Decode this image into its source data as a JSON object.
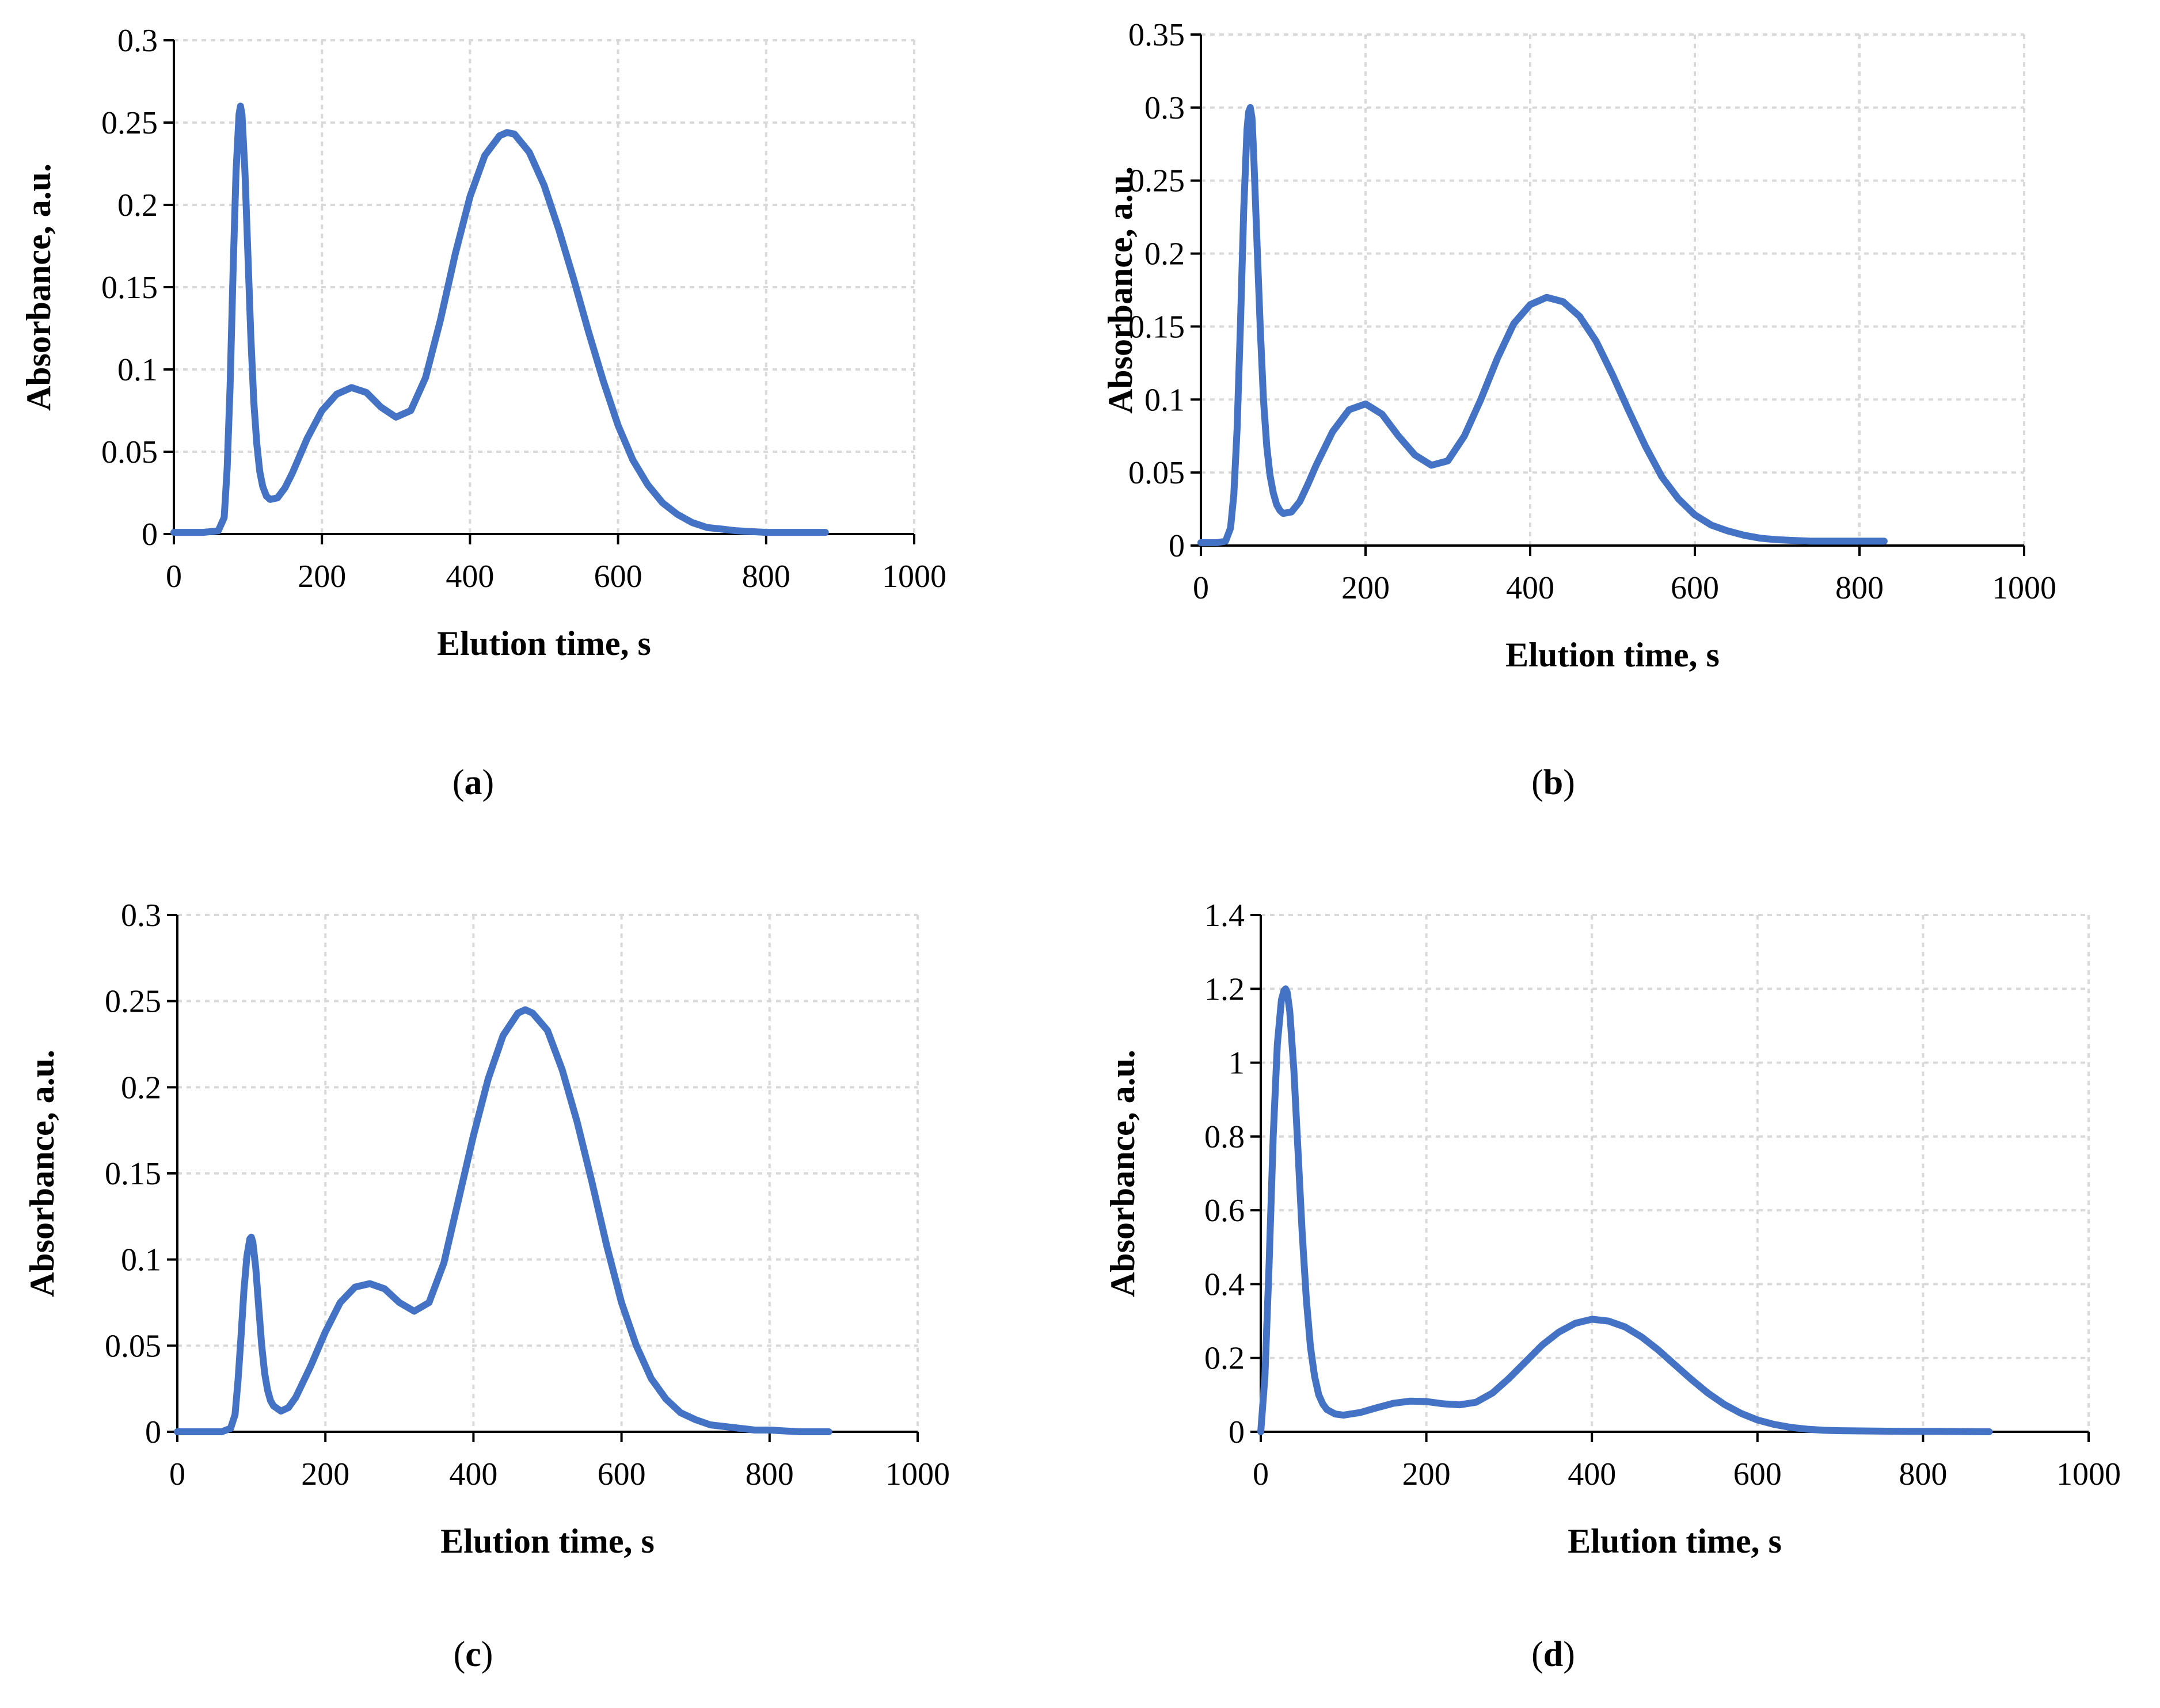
{
  "chart_data": [
    {
      "id": "a",
      "type": "line",
      "panel_label": "a",
      "xlabel": "Elution time, s",
      "ylabel": "Absorbance, a.u.",
      "xlim": [
        0,
        1000
      ],
      "ylim": [
        0,
        0.3
      ],
      "xticks": [
        0,
        200,
        400,
        600,
        800,
        1000
      ],
      "yticks": [
        0,
        0.05,
        0.1,
        0.15,
        0.2,
        0.25,
        0.3
      ],
      "grid": true,
      "x": [
        0,
        40,
        60,
        68,
        72,
        76,
        80,
        84,
        88,
        90,
        92,
        96,
        100,
        104,
        108,
        112,
        116,
        120,
        125,
        130,
        140,
        150,
        160,
        180,
        200,
        220,
        240,
        260,
        280,
        300,
        320,
        340,
        360,
        380,
        400,
        420,
        440,
        450,
        460,
        480,
        500,
        520,
        540,
        560,
        580,
        600,
        620,
        640,
        660,
        680,
        700,
        720,
        740,
        760,
        780,
        800,
        840,
        880
      ],
      "values": [
        0.001,
        0.001,
        0.002,
        0.01,
        0.04,
        0.09,
        0.16,
        0.22,
        0.255,
        0.26,
        0.255,
        0.22,
        0.17,
        0.12,
        0.08,
        0.055,
        0.038,
        0.029,
        0.023,
        0.021,
        0.022,
        0.028,
        0.037,
        0.058,
        0.075,
        0.085,
        0.089,
        0.086,
        0.077,
        0.071,
        0.075,
        0.095,
        0.13,
        0.17,
        0.205,
        0.23,
        0.242,
        0.244,
        0.243,
        0.232,
        0.212,
        0.185,
        0.155,
        0.123,
        0.093,
        0.066,
        0.045,
        0.03,
        0.019,
        0.012,
        0.007,
        0.004,
        0.003,
        0.002,
        0.0015,
        0.001,
        0.001,
        0.001
      ],
      "xmax_data": 880
    },
    {
      "id": "b",
      "type": "line",
      "panel_label": "b",
      "xlabel": "Elution time, s",
      "ylabel": "Absorbance, a.u.",
      "xlim": [
        0,
        1000
      ],
      "ylim": [
        0,
        0.35
      ],
      "xticks": [
        0,
        200,
        400,
        600,
        800,
        1000
      ],
      "yticks": [
        0,
        0.05,
        0.1,
        0.15,
        0.2,
        0.25,
        0.3,
        0.35
      ],
      "grid": true,
      "x": [
        0,
        20,
        30,
        36,
        40,
        44,
        48,
        52,
        56,
        58,
        60,
        62,
        64,
        68,
        72,
        76,
        80,
        84,
        88,
        92,
        96,
        100,
        110,
        120,
        130,
        140,
        160,
        180,
        200,
        220,
        240,
        260,
        280,
        300,
        320,
        340,
        360,
        380,
        400,
        420,
        440,
        460,
        480,
        500,
        520,
        540,
        560,
        580,
        600,
        620,
        640,
        660,
        680,
        700,
        740,
        780,
        830
      ],
      "values": [
        0.002,
        0.002,
        0.003,
        0.012,
        0.035,
        0.08,
        0.15,
        0.23,
        0.285,
        0.297,
        0.3,
        0.293,
        0.27,
        0.21,
        0.15,
        0.1,
        0.068,
        0.048,
        0.036,
        0.028,
        0.024,
        0.022,
        0.023,
        0.03,
        0.042,
        0.055,
        0.078,
        0.093,
        0.097,
        0.09,
        0.075,
        0.062,
        0.055,
        0.058,
        0.075,
        0.1,
        0.128,
        0.152,
        0.165,
        0.17,
        0.167,
        0.157,
        0.14,
        0.117,
        0.092,
        0.068,
        0.047,
        0.032,
        0.021,
        0.014,
        0.01,
        0.007,
        0.005,
        0.004,
        0.003,
        0.003,
        0.003
      ],
      "xmax_data": 830
    },
    {
      "id": "c",
      "type": "line",
      "panel_label": "c",
      "xlabel": "Elution time, s",
      "ylabel": "Absorbance, a.u.",
      "xlim": [
        0,
        1000
      ],
      "ylim": [
        0,
        0.3
      ],
      "xticks": [
        0,
        200,
        400,
        600,
        800,
        1000
      ],
      "yticks": [
        0,
        0.05,
        0.1,
        0.15,
        0.2,
        0.25,
        0.3
      ],
      "grid": true,
      "x": [
        0,
        60,
        72,
        78,
        82,
        86,
        90,
        94,
        98,
        100,
        102,
        106,
        110,
        114,
        118,
        122,
        126,
        130,
        140,
        150,
        160,
        180,
        200,
        220,
        240,
        260,
        280,
        300,
        320,
        340,
        360,
        380,
        400,
        420,
        440,
        460,
        470,
        480,
        500,
        520,
        540,
        560,
        580,
        600,
        620,
        640,
        660,
        680,
        700,
        720,
        740,
        760,
        780,
        800,
        840,
        880
      ],
      "values": [
        0.0,
        0.0,
        0.002,
        0.01,
        0.03,
        0.055,
        0.082,
        0.102,
        0.112,
        0.113,
        0.11,
        0.095,
        0.072,
        0.05,
        0.034,
        0.024,
        0.018,
        0.015,
        0.012,
        0.014,
        0.02,
        0.038,
        0.058,
        0.075,
        0.084,
        0.086,
        0.083,
        0.075,
        0.07,
        0.075,
        0.098,
        0.135,
        0.172,
        0.205,
        0.23,
        0.243,
        0.245,
        0.243,
        0.233,
        0.21,
        0.18,
        0.145,
        0.108,
        0.075,
        0.05,
        0.031,
        0.019,
        0.011,
        0.007,
        0.004,
        0.003,
        0.002,
        0.001,
        0.001,
        0.0,
        0.0
      ],
      "xmax_data": 880
    },
    {
      "id": "d",
      "type": "line",
      "panel_label": "d",
      "xlabel": "Elution time, s",
      "ylabel": "Absorbance, a.u.",
      "xlim": [
        0,
        1000
      ],
      "ylim": [
        0,
        1.4
      ],
      "xticks": [
        0,
        200,
        400,
        600,
        800,
        1000
      ],
      "yticks": [
        0,
        0.2,
        0.4,
        0.6,
        0.8,
        1,
        1.2,
        1.4
      ],
      "grid": true,
      "x": [
        0,
        5,
        10,
        15,
        20,
        25,
        28,
        30,
        32,
        35,
        40,
        45,
        50,
        55,
        60,
        65,
        70,
        75,
        80,
        90,
        100,
        120,
        140,
        160,
        180,
        200,
        220,
        240,
        260,
        280,
        300,
        320,
        340,
        360,
        380,
        400,
        420,
        440,
        460,
        480,
        500,
        520,
        540,
        560,
        580,
        600,
        620,
        640,
        660,
        680,
        700,
        740,
        780,
        820,
        880
      ],
      "values": [
        0.0,
        0.15,
        0.45,
        0.8,
        1.05,
        1.17,
        1.195,
        1.2,
        1.19,
        1.14,
        0.98,
        0.76,
        0.54,
        0.36,
        0.23,
        0.15,
        0.1,
        0.075,
        0.06,
        0.048,
        0.045,
        0.052,
        0.065,
        0.077,
        0.083,
        0.082,
        0.076,
        0.073,
        0.08,
        0.105,
        0.145,
        0.19,
        0.235,
        0.27,
        0.294,
        0.305,
        0.3,
        0.284,
        0.257,
        0.222,
        0.182,
        0.142,
        0.105,
        0.074,
        0.05,
        0.032,
        0.02,
        0.012,
        0.007,
        0.004,
        0.003,
        0.002,
        0.001,
        0.001,
        0.0
      ],
      "xmax_data": 880
    }
  ]
}
